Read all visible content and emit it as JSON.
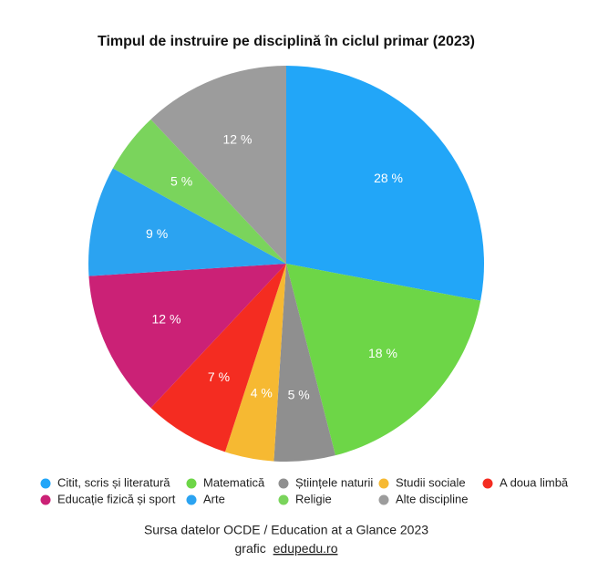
{
  "chart_data": {
    "type": "pie",
    "title": "Timpul de instruire pe disciplină în ciclul primar (2023)",
    "categories": [
      "Citit, scris și literatură",
      "Matematică",
      "Științele naturii",
      "Studii sociale",
      "A doua limbă",
      "Educație fizică și sport",
      "Arte",
      "Religie",
      "Alte discipline"
    ],
    "values": [
      28,
      18,
      5,
      4,
      7,
      12,
      9,
      5,
      12
    ],
    "value_labels": [
      "28 %",
      "18 %",
      "5 %",
      "4 %",
      "7 %",
      "12 %",
      "9 %",
      "5 %",
      "12 %"
    ],
    "colors": [
      "#22a6f8",
      "#6dd647",
      "#8f8f8f",
      "#f6b932",
      "#f42c21",
      "#cb2176",
      "#2ba3f1",
      "#7ad45c",
      "#9c9c9c"
    ]
  },
  "footer": {
    "source": "Sursa datelor OCDE / Education at a Glance 2023",
    "credit_prefix": "grafic",
    "credit_link": "edupedu.ro"
  }
}
